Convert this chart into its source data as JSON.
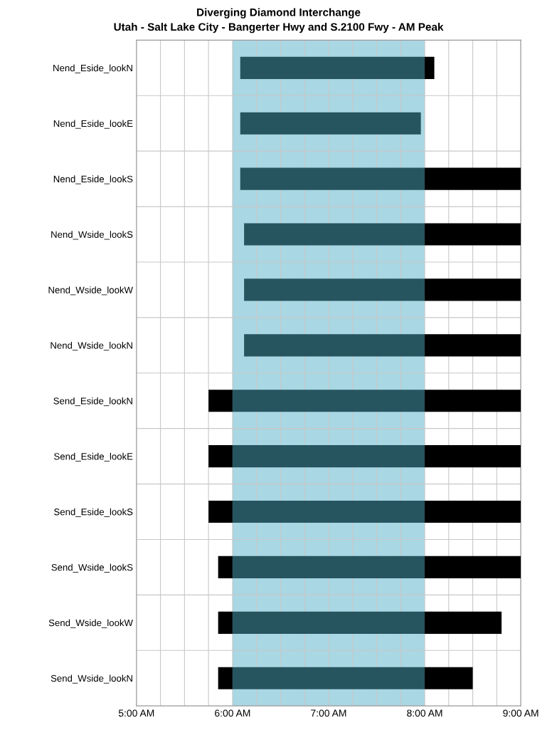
{
  "chart_data": {
    "type": "bar",
    "orientation": "horizontal",
    "title": "Diverging Diamond Interchange",
    "subtitle": "Utah - Salt Lake City - Bangerter Hwy and S.2100 Fwy - AM Peak",
    "categories": [
      "Nend_Eside_lookN",
      "Nend_Eside_lookE",
      "Nend_Eside_lookS",
      "Nend_Wside_lookS",
      "Nend_Wside_lookW",
      "Nend_Wside_lookN",
      "Send_Eside_lookN",
      "Send_Eside_lookE",
      "Send_Eside_lookS",
      "Send_Wside_lookS",
      "Send_Wside_lookW",
      "Send_Wside_lookN"
    ],
    "series": [
      {
        "color": "#000000",
        "base": [
          null,
          null,
          null,
          null,
          null,
          null,
          5.75,
          5.75,
          5.75,
          5.85,
          5.85,
          5.85
        ],
        "values": [
          null,
          null,
          null,
          null,
          null,
          null,
          0.25,
          0.25,
          0.25,
          0.15,
          0.15,
          0.15
        ]
      },
      {
        "color": "#26545f",
        "base": [
          6.08,
          6.08,
          6.08,
          6.12,
          6.12,
          6.12,
          6,
          6,
          6,
          6,
          6,
          6
        ],
        "values": [
          1.92,
          1.88,
          1.92,
          1.88,
          1.88,
          1.88,
          2,
          2,
          2,
          2,
          2,
          2
        ]
      },
      {
        "color": "#000000",
        "base": [
          8,
          null,
          8,
          8,
          8,
          8,
          8,
          8,
          8,
          8,
          8,
          8
        ],
        "values": [
          0.1,
          null,
          1,
          1,
          1,
          1,
          1,
          1,
          1,
          1,
          0.8,
          0.5
        ]
      }
    ],
    "bands": [
      {
        "axis": "x",
        "from": 6,
        "to": 8,
        "color": "#a9d7e3"
      }
    ],
    "xlim": [
      5,
      9
    ],
    "xticks": [
      {
        "value": 5,
        "label": "5:00 AM"
      },
      {
        "value": 5.25,
        "label": null
      },
      {
        "value": 5.5,
        "label": null
      },
      {
        "value": 5.75,
        "label": null
      },
      {
        "value": 6,
        "label": "6:00 AM"
      },
      {
        "value": 6.25,
        "label": null
      },
      {
        "value": 6.5,
        "label": null
      },
      {
        "value": 6.75,
        "label": null
      },
      {
        "value": 7,
        "label": "7:00 AM"
      },
      {
        "value": 7.25,
        "label": null
      },
      {
        "value": 7.5,
        "label": null
      },
      {
        "value": 7.75,
        "label": null
      },
      {
        "value": 8,
        "label": "8:00 AM"
      },
      {
        "value": 8.25,
        "label": null
      },
      {
        "value": 8.5,
        "label": null
      },
      {
        "value": 8.75,
        "label": null
      },
      {
        "value": 9,
        "label": "9:00 AM"
      }
    ],
    "grid": true
  }
}
